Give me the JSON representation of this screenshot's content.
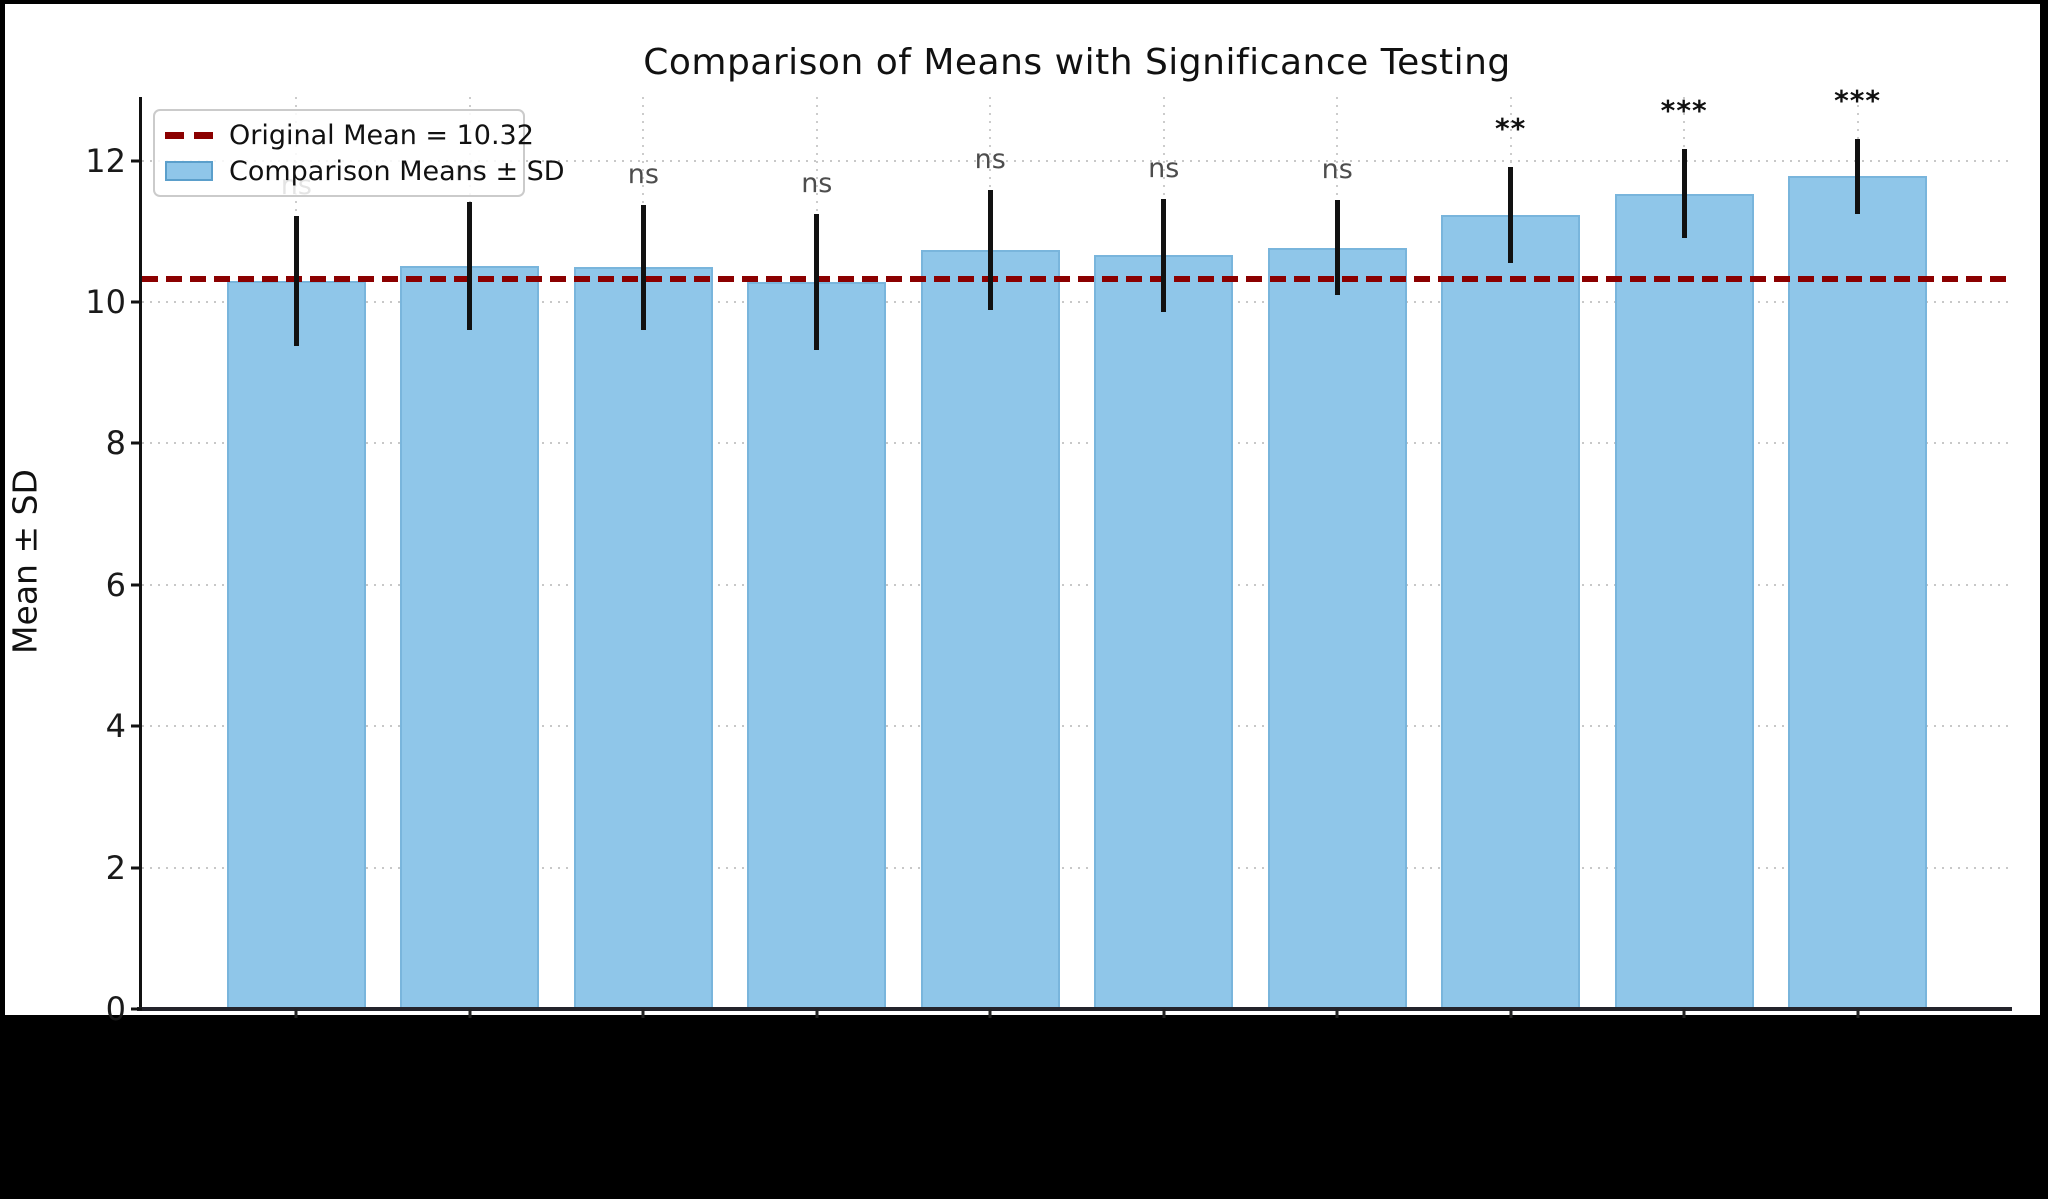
{
  "title": "Comparison of Means with Significance Testing",
  "ylabel": "Mean ± SD",
  "legend": {
    "mean_line_label": "Original Mean = 10.32",
    "bars_label": "Comparison Means ± SD"
  },
  "colors": {
    "background": "#000000",
    "figure_bg": "#ffffff",
    "bar_fill": "#8fc6e9",
    "bar_edge": "#79b5dc",
    "mean_line": "#8b0000",
    "error_bar": "#111111",
    "grid": "#c8c8c8",
    "ns_label": "#4d4d4d",
    "star_label": "#111111"
  },
  "chart_data": {
    "type": "bar",
    "title": "Comparison of Means with Significance Testing",
    "xlabel": "",
    "ylabel": "Mean ± SD",
    "n_bars": 10,
    "x_tick_labels_visible": false,
    "yticks": [
      0,
      2,
      4,
      6,
      8,
      10,
      12
    ],
    "ylim": [
      0,
      12.9
    ],
    "grid": true,
    "legend_position": "upper left",
    "reference_line": {
      "value": 10.32,
      "label": "Original Mean = 10.32",
      "style": "dashed",
      "color": "#8b0000"
    },
    "series": [
      {
        "name": "Comparison Means ± SD",
        "means": [
          10.3,
          10.51,
          10.49,
          10.28,
          10.73,
          10.66,
          10.77,
          11.23,
          11.53,
          11.78
        ],
        "sds": [
          0.92,
          0.9,
          0.88,
          0.96,
          0.85,
          0.8,
          0.67,
          0.68,
          0.63,
          0.53
        ]
      }
    ],
    "significance_labels": [
      "ns",
      "ns",
      "ns",
      "ns",
      "ns",
      "ns",
      "ns",
      "**",
      "***",
      "***"
    ],
    "significance_note": "labels for first two bars are occluded by the legend box"
  }
}
